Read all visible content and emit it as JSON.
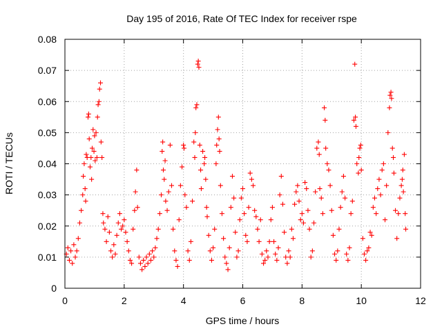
{
  "chart_data": {
    "type": "scatter",
    "title": "Day 195 of 2016, Rate Of TEC Index for receiver rspe",
    "xlabel": "GPS time / hours",
    "ylabel": "ROTI / TECUs",
    "xlim": [
      0,
      12
    ],
    "ylim": [
      0,
      0.08
    ],
    "x_ticks": [
      0,
      2,
      4,
      6,
      8,
      10,
      12
    ],
    "x_tick_labels": [
      "0",
      "2",
      "4",
      "6",
      "8",
      "10",
      "12"
    ],
    "y_ticks": [
      0,
      0.01,
      0.02,
      0.03,
      0.04,
      0.05,
      0.06,
      0.07,
      0.08
    ],
    "y_tick_labels": [
      "0",
      "0.01",
      "0.02",
      "0.03",
      "0.04",
      "0.05",
      "0.06",
      "0.07",
      "0.08"
    ],
    "grid": true,
    "marker": "+",
    "color": "#ff0000",
    "series": [
      {
        "name": "ROTI",
        "points": [
          [
            0.05,
            0.011
          ],
          [
            0.1,
            0.013
          ],
          [
            0.15,
            0.009
          ],
          [
            0.2,
            0.012
          ],
          [
            0.25,
            0.008
          ],
          [
            0.3,
            0.014
          ],
          [
            0.35,
            0.01
          ],
          [
            0.4,
            0.012
          ],
          [
            0.45,
            0.016
          ],
          [
            0.5,
            0.021
          ],
          [
            0.55,
            0.025
          ],
          [
            0.6,
            0.03
          ],
          [
            0.62,
            0.036
          ],
          [
            0.65,
            0.04
          ],
          [
            0.68,
            0.032
          ],
          [
            0.7,
            0.028
          ],
          [
            0.72,
            0.043
          ],
          [
            0.75,
            0.042
          ],
          [
            0.78,
            0.055
          ],
          [
            0.8,
            0.056
          ],
          [
            0.82,
            0.048
          ],
          [
            0.85,
            0.039
          ],
          [
            0.88,
            0.042
          ],
          [
            0.9,
            0.035
          ],
          [
            0.92,
            0.045
          ],
          [
            0.95,
            0.051
          ],
          [
            0.98,
            0.044
          ],
          [
            1.0,
            0.049
          ],
          [
            1.02,
            0.041
          ],
          [
            1.05,
            0.05
          ],
          [
            1.08,
            0.042
          ],
          [
            1.1,
            0.055
          ],
          [
            1.12,
            0.059
          ],
          [
            1.15,
            0.06
          ],
          [
            1.17,
            0.064
          ],
          [
            1.2,
            0.066
          ],
          [
            1.22,
            0.047
          ],
          [
            1.25,
            0.042
          ],
          [
            1.28,
            0.024
          ],
          [
            1.3,
            0.021
          ],
          [
            1.35,
            0.019
          ],
          [
            1.4,
            0.015
          ],
          [
            1.45,
            0.023
          ],
          [
            1.5,
            0.018
          ],
          [
            1.55,
            0.012
          ],
          [
            1.6,
            0.01
          ],
          [
            1.65,
            0.014
          ],
          [
            1.7,
            0.011
          ],
          [
            1.75,
            0.017
          ],
          [
            1.8,
            0.021
          ],
          [
            1.85,
            0.024
          ],
          [
            1.9,
            0.019
          ],
          [
            1.95,
            0.02
          ],
          [
            2.0,
            0.022
          ],
          [
            2.05,
            0.018
          ],
          [
            2.1,
            0.015
          ],
          [
            2.15,
            0.012
          ],
          [
            2.2,
            0.009
          ],
          [
            2.25,
            0.008
          ],
          [
            2.3,
            0.019
          ],
          [
            2.35,
            0.025
          ],
          [
            2.38,
            0.031
          ],
          [
            2.42,
            0.038
          ],
          [
            2.45,
            0.026
          ],
          [
            2.5,
            0.01
          ],
          [
            2.55,
            0.008
          ],
          [
            2.6,
            0.006
          ],
          [
            2.65,
            0.009
          ],
          [
            2.7,
            0.007
          ],
          [
            2.75,
            0.01
          ],
          [
            2.8,
            0.008
          ],
          [
            2.85,
            0.011
          ],
          [
            2.9,
            0.009
          ],
          [
            2.95,
            0.012
          ],
          [
            3.0,
            0.01
          ],
          [
            3.05,
            0.013
          ],
          [
            3.1,
            0.016
          ],
          [
            3.15,
            0.019
          ],
          [
            3.2,
            0.024
          ],
          [
            3.25,
            0.03
          ],
          [
            3.28,
            0.044
          ],
          [
            3.3,
            0.047
          ],
          [
            3.32,
            0.038
          ],
          [
            3.35,
            0.035
          ],
          [
            3.38,
            0.041
          ],
          [
            3.4,
            0.028
          ],
          [
            3.45,
            0.025
          ],
          [
            3.5,
            0.031
          ],
          [
            3.55,
            0.046
          ],
          [
            3.6,
            0.033
          ],
          [
            3.65,
            0.019
          ],
          [
            3.7,
            0.012
          ],
          [
            3.75,
            0.009
          ],
          [
            3.8,
            0.007
          ],
          [
            3.85,
            0.022
          ],
          [
            3.9,
            0.033
          ],
          [
            3.95,
            0.039
          ],
          [
            4.0,
            0.046
          ],
          [
            4.02,
            0.045
          ],
          [
            4.05,
            0.03
          ],
          [
            4.1,
            0.026
          ],
          [
            4.15,
            0.012
          ],
          [
            4.2,
            0.009
          ],
          [
            4.25,
            0.015
          ],
          [
            4.3,
            0.028
          ],
          [
            4.35,
            0.047
          ],
          [
            4.38,
            0.042
          ],
          [
            4.4,
            0.05
          ],
          [
            4.42,
            0.058
          ],
          [
            4.45,
            0.059
          ],
          [
            4.48,
            0.072
          ],
          [
            4.5,
            0.073
          ],
          [
            4.52,
            0.071
          ],
          [
            4.55,
            0.046
          ],
          [
            4.58,
            0.038
          ],
          [
            4.6,
            0.032
          ],
          [
            4.65,
            0.044
          ],
          [
            4.7,
            0.04
          ],
          [
            4.72,
            0.042
          ],
          [
            4.75,
            0.035
          ],
          [
            4.78,
            0.026
          ],
          [
            4.8,
            0.023
          ],
          [
            4.85,
            0.017
          ],
          [
            4.9,
            0.012
          ],
          [
            4.95,
            0.009
          ],
          [
            5.0,
            0.013
          ],
          [
            5.05,
            0.019
          ],
          [
            5.1,
            0.04
          ],
          [
            5.12,
            0.046
          ],
          [
            5.15,
            0.051
          ],
          [
            5.18,
            0.055
          ],
          [
            5.2,
            0.048
          ],
          [
            5.22,
            0.044
          ],
          [
            5.25,
            0.033
          ],
          [
            5.3,
            0.024
          ],
          [
            5.35,
            0.016
          ],
          [
            5.4,
            0.01
          ],
          [
            5.45,
            0.008
          ],
          [
            5.5,
            0.006
          ],
          [
            5.55,
            0.013
          ],
          [
            5.6,
            0.026
          ],
          [
            5.65,
            0.036
          ],
          [
            5.7,
            0.029
          ],
          [
            5.75,
            0.018
          ],
          [
            5.8,
            0.01
          ],
          [
            5.85,
            0.012
          ],
          [
            5.9,
            0.022
          ],
          [
            5.95,
            0.029
          ],
          [
            6.0,
            0.032
          ],
          [
            6.05,
            0.024
          ],
          [
            6.1,
            0.017
          ],
          [
            6.15,
            0.015
          ],
          [
            6.2,
            0.026
          ],
          [
            6.25,
            0.037
          ],
          [
            6.3,
            0.035
          ],
          [
            6.35,
            0.033
          ],
          [
            6.4,
            0.025
          ],
          [
            6.45,
            0.023
          ],
          [
            6.5,
            0.019
          ],
          [
            6.55,
            0.015
          ],
          [
            6.6,
            0.022
          ],
          [
            6.65,
            0.011
          ],
          [
            6.7,
            0.008
          ],
          [
            6.75,
            0.009
          ],
          [
            6.8,
            0.012
          ],
          [
            6.85,
            0.01
          ],
          [
            6.9,
            0.015
          ],
          [
            6.95,
            0.022
          ],
          [
            7.0,
            0.026
          ],
          [
            7.05,
            0.015
          ],
          [
            7.1,
            0.011
          ],
          [
            7.15,
            0.009
          ],
          [
            7.2,
            0.013
          ],
          [
            7.25,
            0.03
          ],
          [
            7.3,
            0.036
          ],
          [
            7.35,
            0.027
          ],
          [
            7.4,
            0.018
          ],
          [
            7.45,
            0.01
          ],
          [
            7.5,
            0.008
          ],
          [
            7.55,
            0.012
          ],
          [
            7.6,
            0.01
          ],
          [
            7.65,
            0.019
          ],
          [
            7.7,
            0.016
          ],
          [
            7.75,
            0.027
          ],
          [
            7.8,
            0.031
          ],
          [
            7.85,
            0.033
          ],
          [
            7.9,
            0.028
          ],
          [
            7.95,
            0.022
          ],
          [
            8.0,
            0.024
          ],
          [
            8.05,
            0.021
          ],
          [
            8.1,
            0.034
          ],
          [
            8.15,
            0.032
          ],
          [
            8.2,
            0.025
          ],
          [
            8.25,
            0.019
          ],
          [
            8.3,
            0.01
          ],
          [
            8.35,
            0.012
          ],
          [
            8.4,
            0.021
          ],
          [
            8.45,
            0.031
          ],
          [
            8.5,
            0.045
          ],
          [
            8.55,
            0.047
          ],
          [
            8.58,
            0.043
          ],
          [
            8.6,
            0.032
          ],
          [
            8.65,
            0.029
          ],
          [
            8.7,
            0.024
          ],
          [
            8.75,
            0.058
          ],
          [
            8.78,
            0.054
          ],
          [
            8.8,
            0.045
          ],
          [
            8.85,
            0.04
          ],
          [
            8.9,
            0.038
          ],
          [
            8.95,
            0.033
          ],
          [
            9.0,
            0.025
          ],
          [
            9.05,
            0.017
          ],
          [
            9.1,
            0.011
          ],
          [
            9.15,
            0.009
          ],
          [
            9.2,
            0.012
          ],
          [
            9.25,
            0.019
          ],
          [
            9.3,
            0.026
          ],
          [
            9.35,
            0.031
          ],
          [
            9.4,
            0.036
          ],
          [
            9.45,
            0.029
          ],
          [
            9.5,
            0.011
          ],
          [
            9.55,
            0.009
          ],
          [
            9.6,
            0.013
          ],
          [
            9.65,
            0.024
          ],
          [
            9.7,
            0.028
          ],
          [
            9.75,
            0.054
          ],
          [
            9.78,
            0.072
          ],
          [
            9.8,
            0.055
          ],
          [
            9.82,
            0.052
          ],
          [
            9.85,
            0.04
          ],
          [
            9.9,
            0.037
          ],
          [
            9.92,
            0.042
          ],
          [
            9.95,
            0.045
          ],
          [
            9.98,
            0.046
          ],
          [
            10.0,
            0.038
          ],
          [
            10.05,
            0.016
          ],
          [
            10.1,
            0.011
          ],
          [
            10.15,
            0.009
          ],
          [
            10.2,
            0.012
          ],
          [
            10.25,
            0.013
          ],
          [
            10.3,
            0.018
          ],
          [
            10.35,
            0.017
          ],
          [
            10.4,
            0.026
          ],
          [
            10.45,
            0.029
          ],
          [
            10.5,
            0.024
          ],
          [
            10.55,
            0.032
          ],
          [
            10.6,
            0.035
          ],
          [
            10.65,
            0.03
          ],
          [
            10.7,
            0.038
          ],
          [
            10.75,
            0.04
          ],
          [
            10.8,
            0.022
          ],
          [
            10.85,
            0.033
          ],
          [
            10.9,
            0.05
          ],
          [
            10.95,
            0.058
          ],
          [
            10.97,
            0.062
          ],
          [
            11.0,
            0.063
          ],
          [
            11.02,
            0.061
          ],
          [
            11.05,
            0.045
          ],
          [
            11.08,
            0.042
          ],
          [
            11.1,
            0.037
          ],
          [
            11.15,
            0.025
          ],
          [
            11.2,
            0.016
          ],
          [
            11.25,
            0.024
          ],
          [
            11.3,
            0.029
          ],
          [
            11.35,
            0.033
          ],
          [
            11.38,
            0.035
          ],
          [
            11.4,
            0.038
          ],
          [
            11.42,
            0.031
          ],
          [
            11.45,
            0.043
          ],
          [
            11.48,
            0.024
          ],
          [
            11.5,
            0.019
          ]
        ]
      }
    ]
  }
}
